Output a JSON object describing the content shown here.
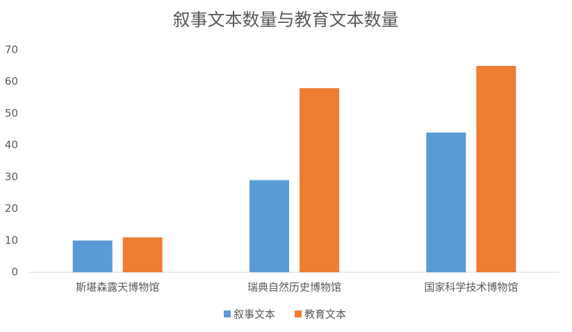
{
  "chart_data": {
    "type": "bar",
    "title": "叙事文本数量与教育文本数量",
    "categories": [
      "斯堪森露天博物馆",
      "瑞典自然历史博物馆",
      "国家科学技术博物馆"
    ],
    "series": [
      {
        "name": "叙事文本",
        "color": "#5b9bd5",
        "values": [
          10,
          29,
          44
        ]
      },
      {
        "name": "教育文本",
        "color": "#ed7d31",
        "values": [
          11,
          58,
          65
        ]
      }
    ],
    "ylim": [
      0,
      70
    ],
    "yticks": [
      0,
      10,
      20,
      30,
      40,
      50,
      60,
      70
    ],
    "grid": false,
    "legend": "bottom"
  }
}
